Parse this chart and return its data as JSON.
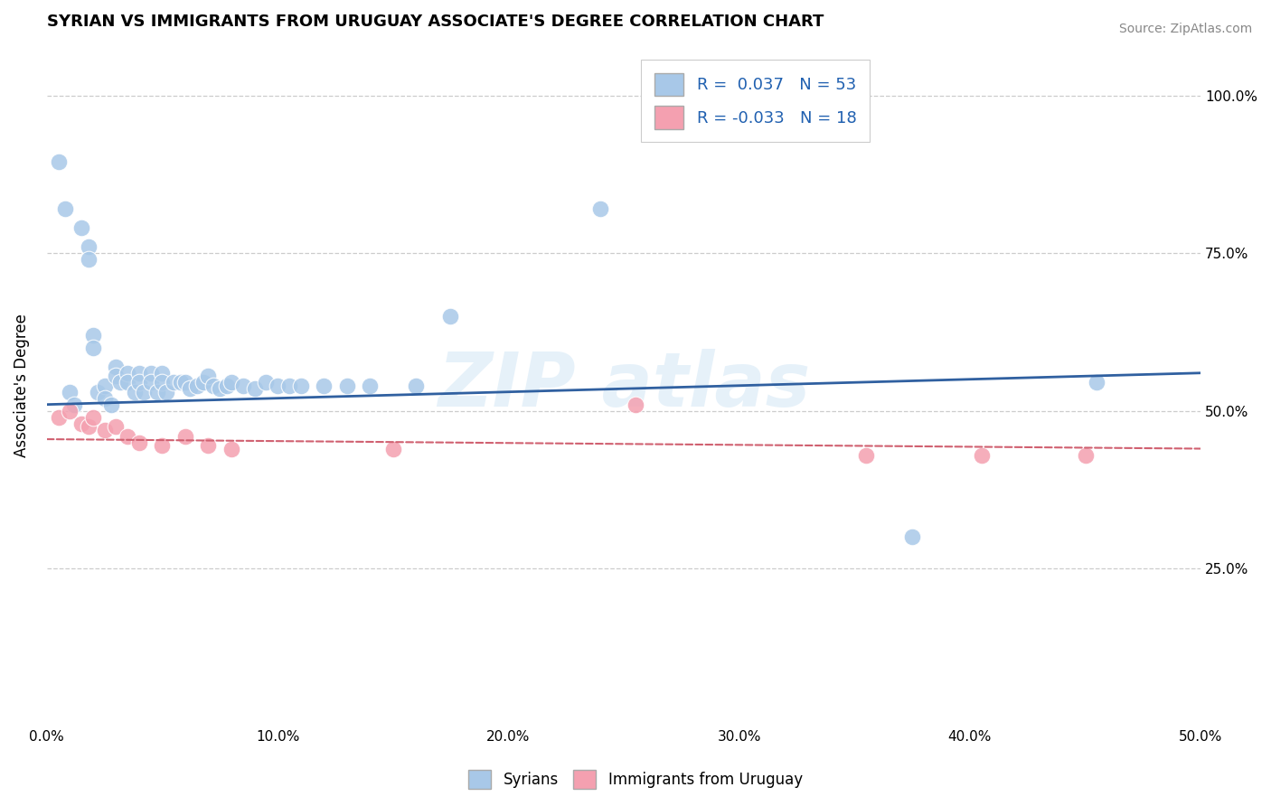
{
  "title": "SYRIAN VS IMMIGRANTS FROM URUGUAY ASSOCIATE'S DEGREE CORRELATION CHART",
  "source": "Source: ZipAtlas.com",
  "ylabel_label": "Associate's Degree",
  "x_tick_labels": [
    "0.0%",
    "10.0%",
    "20.0%",
    "30.0%",
    "40.0%",
    "50.0%"
  ],
  "x_tick_values": [
    0.0,
    0.1,
    0.2,
    0.3,
    0.4,
    0.5
  ],
  "y_tick_labels": [
    "25.0%",
    "50.0%",
    "75.0%",
    "100.0%"
  ],
  "y_tick_values": [
    0.25,
    0.5,
    0.75,
    1.0
  ],
  "xlim": [
    0.0,
    0.5
  ],
  "ylim": [
    0.0,
    1.08
  ],
  "blue_color": "#a8c8e8",
  "pink_color": "#f4a0b0",
  "blue_line_color": "#3060a0",
  "pink_line_color": "#d06070",
  "background_color": "#ffffff",
  "grid_color": "#cccccc",
  "syrians_x": [
    0.005,
    0.008,
    0.01,
    0.012,
    0.015,
    0.018,
    0.018,
    0.02,
    0.02,
    0.022,
    0.025,
    0.025,
    0.028,
    0.03,
    0.03,
    0.032,
    0.035,
    0.035,
    0.038,
    0.04,
    0.04,
    0.042,
    0.045,
    0.045,
    0.048,
    0.05,
    0.05,
    0.052,
    0.055,
    0.058,
    0.06,
    0.062,
    0.065,
    0.068,
    0.07,
    0.072,
    0.075,
    0.078,
    0.08,
    0.085,
    0.09,
    0.095,
    0.1,
    0.105,
    0.11,
    0.12,
    0.13,
    0.14,
    0.16,
    0.175,
    0.24,
    0.375,
    0.455
  ],
  "syrians_y": [
    0.895,
    0.82,
    0.53,
    0.51,
    0.79,
    0.76,
    0.74,
    0.62,
    0.6,
    0.53,
    0.54,
    0.52,
    0.51,
    0.57,
    0.555,
    0.545,
    0.56,
    0.545,
    0.53,
    0.56,
    0.545,
    0.53,
    0.56,
    0.545,
    0.53,
    0.56,
    0.545,
    0.53,
    0.545,
    0.545,
    0.545,
    0.535,
    0.54,
    0.545,
    0.555,
    0.54,
    0.535,
    0.54,
    0.545,
    0.54,
    0.535,
    0.545,
    0.54,
    0.54,
    0.54,
    0.54,
    0.54,
    0.54,
    0.54,
    0.65,
    0.82,
    0.3,
    0.545
  ],
  "uruguay_x": [
    0.005,
    0.01,
    0.015,
    0.018,
    0.02,
    0.025,
    0.03,
    0.035,
    0.04,
    0.05,
    0.06,
    0.07,
    0.08,
    0.15,
    0.255,
    0.355,
    0.405,
    0.45
  ],
  "uruguay_y": [
    0.49,
    0.5,
    0.48,
    0.475,
    0.49,
    0.47,
    0.475,
    0.46,
    0.45,
    0.445,
    0.46,
    0.445,
    0.44,
    0.44,
    0.51,
    0.43,
    0.43,
    0.43
  ],
  "blue_trendline_x": [
    0.0,
    0.5
  ],
  "blue_trendline_y": [
    0.51,
    0.56
  ],
  "pink_trendline_x": [
    0.0,
    0.5
  ],
  "pink_trendline_y": [
    0.455,
    0.44
  ]
}
